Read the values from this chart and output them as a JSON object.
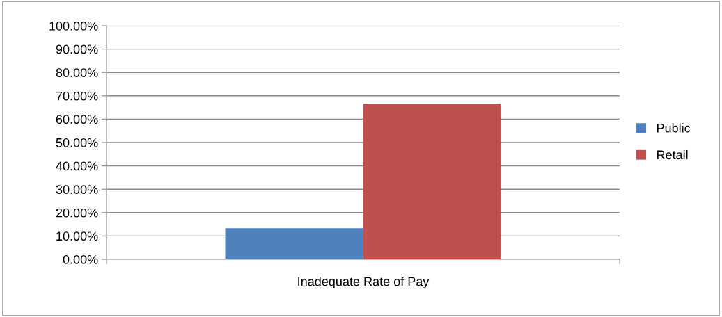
{
  "chart_data": {
    "type": "bar",
    "categories": [
      "Inadequate Rate of Pay"
    ],
    "series": [
      {
        "name": "Public",
        "color": "#4f81bd",
        "values": [
          13.3
        ]
      },
      {
        "name": "Retail",
        "color": "#c0504d",
        "values": [
          66.7
        ]
      }
    ],
    "ylim": [
      0,
      100
    ],
    "yticks": [
      {
        "value": 0,
        "label": "0.00%"
      },
      {
        "value": 10,
        "label": "10.00%"
      },
      {
        "value": 20,
        "label": "20.00%"
      },
      {
        "value": 30,
        "label": "30.00%"
      },
      {
        "value": 40,
        "label": "40.00%"
      },
      {
        "value": 50,
        "label": "50.00%"
      },
      {
        "value": 60,
        "label": "60.00%"
      },
      {
        "value": 70,
        "label": "70.00%"
      },
      {
        "value": 80,
        "label": "80.00%"
      },
      {
        "value": 90,
        "label": "90.00%"
      },
      {
        "value": 100,
        "label": "100.00%"
      }
    ],
    "grid": "y",
    "legend": "right"
  }
}
